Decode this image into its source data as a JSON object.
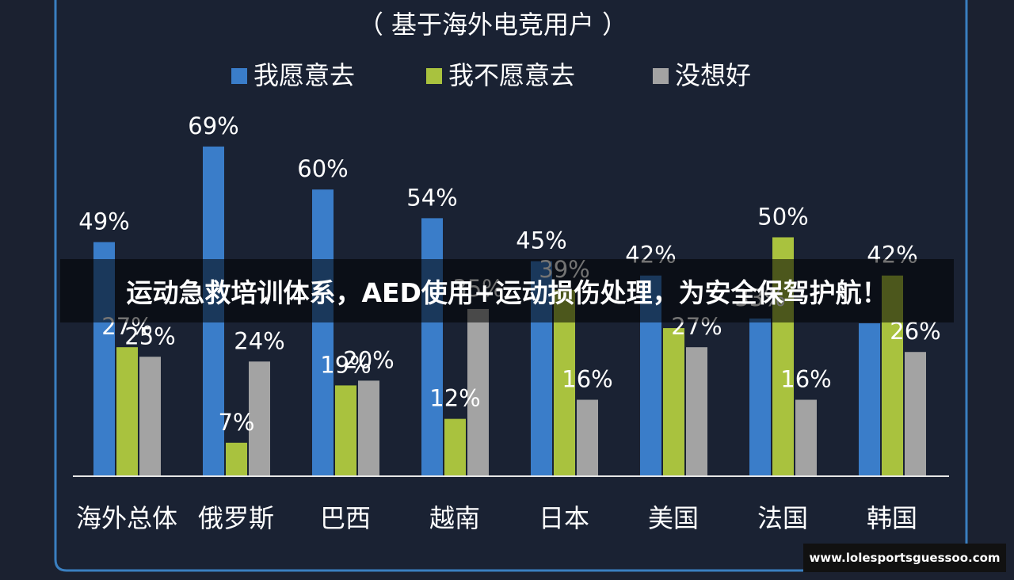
{
  "chart_data": {
    "type": "bar",
    "title": "",
    "subtitle": "（ 基于海外电竞用户 ）",
    "xlabel": "",
    "ylabel": "",
    "ylim": [
      0,
      75
    ],
    "grid": false,
    "legend_position": "top",
    "categories": [
      "海外总体",
      "俄罗斯",
      "巴西",
      "越南",
      "日本",
      "美国",
      "法国",
      "韩国"
    ],
    "series": [
      {
        "name": "我愿意去",
        "color": "#3a7dc9",
        "values": [
          49,
          69,
          60,
          54,
          45,
          42,
          33,
          32
        ],
        "labels": [
          "49%",
          "69%",
          "60%",
          "54%",
          "45%",
          "42%",
          "33%",
          ""
        ]
      },
      {
        "name": "我不愿意去",
        "color": "#a9c23e",
        "values": [
          27,
          7,
          19,
          12,
          39,
          31,
          50,
          42
        ],
        "labels": [
          "27%",
          "7%",
          "19%",
          "12%",
          "39%",
          "",
          "50%",
          "42%"
        ]
      },
      {
        "name": "没想好",
        "color": "#a3a3a3",
        "values": [
          25,
          24,
          20,
          35,
          16,
          27,
          16,
          26
        ],
        "labels": [
          "25%",
          "24%",
          "20%",
          "35%",
          "16%",
          "27%",
          "16%",
          "26%"
        ]
      }
    ]
  },
  "banner_text": "运动急救培训体系，AED使用+运动损伤处理，为安全保驾护航！",
  "watermark_url": "www.lolesportsguessoo.com",
  "colors": {
    "background": "#1b2130",
    "panel": "#1a2233",
    "panel_border": "#3a7fc0",
    "axis": "#e6e6e6",
    "text": "#ffffff"
  }
}
